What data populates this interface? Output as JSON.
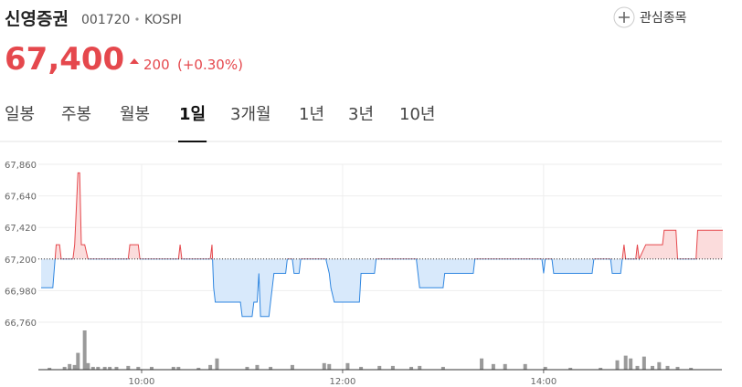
{
  "header": {
    "name": "신영증권",
    "code": "001720",
    "market": "KOSPI",
    "price": "67,400",
    "change": "200",
    "change_pct": "(+0.30%)",
    "watch_button": "관심종목"
  },
  "tabs": {
    "items": [
      "일봉",
      "주봉",
      "월봉",
      "1일",
      "3개월",
      "1년",
      "3년",
      "10년"
    ],
    "selected": 3
  },
  "chart_data": {
    "type": "line",
    "x": [
      "09:00",
      "09:07",
      "09:09",
      "09:11",
      "09:12",
      "09:19",
      "09:20",
      "09:22",
      "09:23",
      "09:24",
      "09:26",
      "09:28",
      "09:52",
      "09:53",
      "09:58",
      "09:59",
      "10:22",
      "10:23",
      "10:24",
      "10:41",
      "10:42",
      "10:43",
      "10:44",
      "10:59",
      "11:00",
      "11:06",
      "11:07",
      "11:09",
      "11:10",
      "11:11",
      "11:16",
      "11:17",
      "11:19",
      "11:26",
      "11:27",
      "11:30",
      "11:31",
      "11:34",
      "11:35",
      "11:50",
      "11:52",
      "11:53",
      "11:55",
      "12:10",
      "12:11",
      "12:19",
      "12:20",
      "12:44",
      "12:45",
      "12:46",
      "13:00",
      "13:01",
      "13:18",
      "13:19",
      "13:59",
      "14:00",
      "14:01",
      "14:05",
      "14:06",
      "14:29",
      "14:30",
      "14:40",
      "14:41",
      "14:46",
      "14:47",
      "14:48",
      "14:49",
      "14:55",
      "14:56",
      "14:57",
      "15:01",
      "15:11",
      "15:12",
      "15:19",
      "15:20",
      "15:31",
      "15:32",
      "15:47"
    ],
    "values": [
      67000,
      67000,
      67300,
      67300,
      67200,
      67200,
      67300,
      67800,
      67800,
      67300,
      67300,
      67200,
      67200,
      67300,
      67300,
      67200,
      67200,
      67300,
      67200,
      67200,
      67300,
      67000,
      66900,
      66900,
      66800,
      66800,
      66900,
      66900,
      67100,
      66800,
      66800,
      66900,
      67100,
      67100,
      67200,
      67200,
      67100,
      67100,
      67200,
      67200,
      67100,
      67000,
      66900,
      66900,
      67100,
      67100,
      67200,
      67200,
      67100,
      67000,
      67000,
      67100,
      67100,
      67200,
      67200,
      67100,
      67200,
      67200,
      67100,
      67100,
      67200,
      67200,
      67100,
      67100,
      67200,
      67300,
      67200,
      67200,
      67300,
      67200,
      67300,
      67300,
      67400,
      67400,
      67200,
      67200,
      67400,
      67400
    ],
    "baseline": 67200,
    "xlim": [
      "09:00",
      "15:47"
    ],
    "xticks": [
      "10:00",
      "12:00",
      "14:00"
    ],
    "ylim": [
      66760,
      67860
    ],
    "yticks": [
      {
        "value": 66760,
        "label": "66,760"
      },
      {
        "value": 66980,
        "label": "66,980"
      },
      {
        "value": 67200,
        "label": "67,200"
      },
      {
        "value": 67420,
        "label": "67,420"
      },
      {
        "value": 67640,
        "label": "67,640"
      },
      {
        "value": 67860,
        "label": "67,860"
      }
    ],
    "grid": true,
    "up_color": "#e5484d",
    "up_fill": "#fbdcdc",
    "down_color": "#2f86e0",
    "down_fill": "#d8e9fb",
    "volume": {
      "type": "bar",
      "color": "#9a9a9a",
      "x": [
        "09:05",
        "09:14",
        "09:17",
        "09:20",
        "09:22",
        "09:26",
        "09:28",
        "09:31",
        "09:34",
        "09:38",
        "09:41",
        "09:45",
        "09:52",
        "09:58",
        "10:06",
        "10:19",
        "10:22",
        "10:34",
        "10:41",
        "10:45",
        "11:03",
        "11:09",
        "11:17",
        "11:30",
        "11:49",
        "11:52",
        "12:03",
        "12:11",
        "12:22",
        "12:30",
        "12:41",
        "12:46",
        "13:00",
        "13:23",
        "13:30",
        "13:37",
        "13:49",
        "14:01",
        "14:16",
        "14:34",
        "14:44",
        "14:49",
        "14:52",
        "14:56",
        "15:00",
        "15:05",
        "15:09",
        "15:14",
        "15:20",
        "15:28"
      ],
      "values": [
        2000,
        3000,
        6000,
        5000,
        18000,
        42000,
        7000,
        3000,
        3000,
        3000,
        3000,
        3000,
        4000,
        3000,
        3000,
        3000,
        3000,
        2000,
        5000,
        12000,
        3000,
        5000,
        3000,
        5000,
        7000,
        6000,
        7000,
        3000,
        4000,
        4000,
        3000,
        4000,
        3000,
        12000,
        6000,
        6000,
        6000,
        3000,
        2000,
        2000,
        10000,
        15000,
        12000,
        4000,
        14000,
        4000,
        8000,
        4000,
        3000,
        2000
      ]
    }
  }
}
